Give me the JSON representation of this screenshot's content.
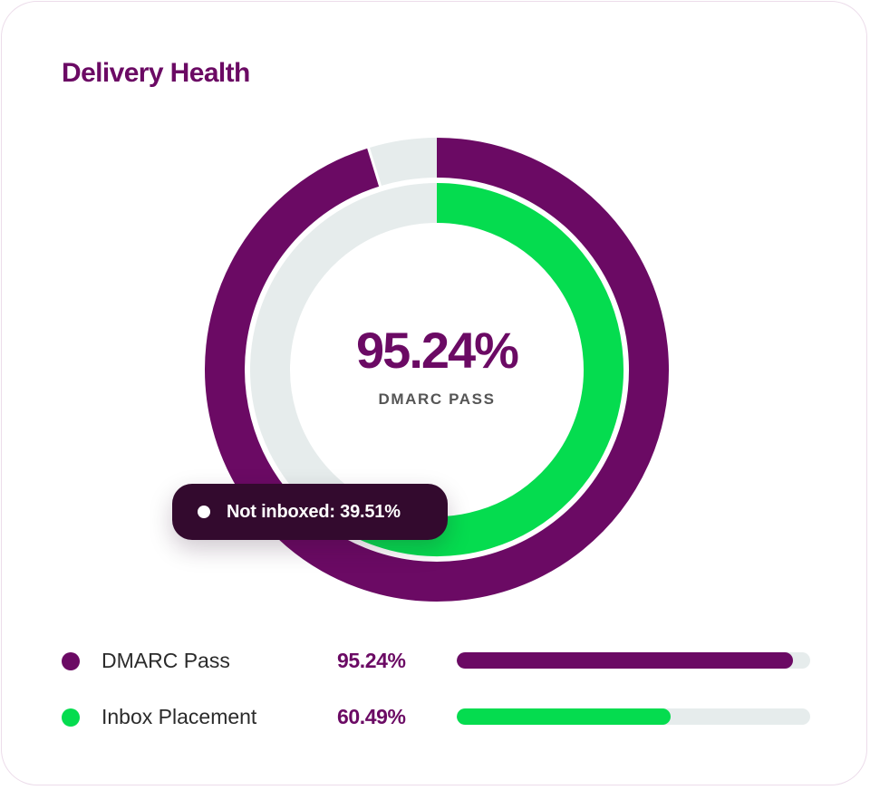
{
  "card": {
    "title": "Delivery Health"
  },
  "center": {
    "value": "95.24%",
    "label": "DMARC PASS"
  },
  "tooltip": {
    "text": "Not inboxed: 39.51%"
  },
  "legend": [
    {
      "name": "DMARC Pass",
      "value": "95.24%",
      "color": "#6b0a64"
    },
    {
      "name": "Inbox Placement",
      "value": "60.49%",
      "color": "#05dc4f"
    }
  ],
  "colors": {
    "accent": "#6b0a64",
    "green": "#05dc4f",
    "track": "#e6ecec",
    "tooltip_bg": "#330a2e"
  },
  "chart_data": {
    "type": "pie",
    "variant": "concentric-donut",
    "title": "Delivery Health",
    "series": [
      {
        "name": "DMARC Pass",
        "value": 95.24,
        "remainder": 4.76,
        "ring": "outer"
      },
      {
        "name": "Inbox Placement",
        "value": 60.49,
        "remainder": 39.51,
        "ring": "inner"
      }
    ],
    "center_value": 95.24,
    "center_label": "DMARC PASS",
    "max": 100
  }
}
